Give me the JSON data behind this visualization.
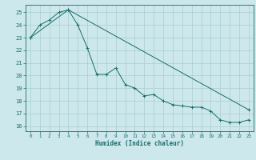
{
  "xlabel": "Humidex (Indice chaleur)",
  "background_color": "#cce8ec",
  "line_color": "#1a6b6b",
  "grid_color": "#aacccc",
  "xlim": [
    -0.5,
    23.5
  ],
  "ylim": [
    15.6,
    25.6
  ],
  "yticks": [
    16,
    17,
    18,
    19,
    20,
    21,
    22,
    23,
    24,
    25
  ],
  "xticks": [
    0,
    1,
    2,
    3,
    4,
    5,
    6,
    7,
    8,
    9,
    10,
    11,
    12,
    13,
    14,
    15,
    16,
    17,
    18,
    19,
    20,
    21,
    22,
    23
  ],
  "line1_x": [
    0,
    1,
    2,
    3,
    4,
    5,
    6,
    7,
    8,
    9,
    10,
    11,
    12,
    13,
    14,
    15,
    16,
    17,
    18,
    19,
    20,
    21,
    22,
    23
  ],
  "line1_y": [
    23.0,
    24.0,
    24.4,
    25.0,
    25.2,
    24.0,
    22.2,
    20.1,
    20.1,
    20.6,
    19.3,
    19.0,
    18.4,
    18.5,
    18.0,
    17.7,
    17.6,
    17.5,
    17.5,
    17.2,
    16.5,
    16.3,
    16.3,
    16.5
  ],
  "line2_x": [
    0,
    4,
    23
  ],
  "line2_y": [
    23.0,
    25.2,
    17.3
  ]
}
